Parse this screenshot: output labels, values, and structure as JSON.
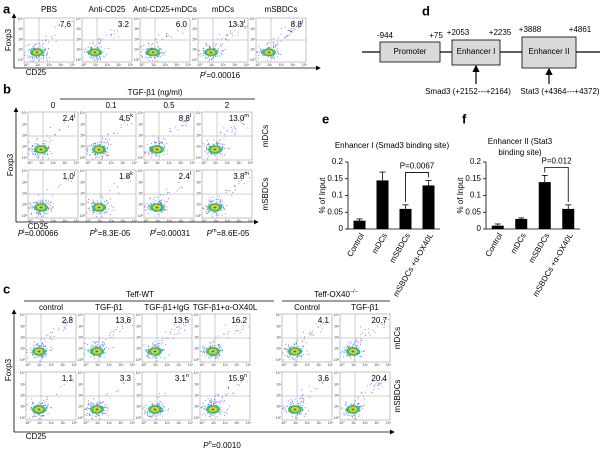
{
  "flow_axis_ticks": [
    "10⁰",
    "10¹",
    "10²",
    "10³",
    "10⁴"
  ],
  "panel_a": {
    "letter": "a",
    "y_label": "Foxp3",
    "x_label": "CD25",
    "plots": [
      {
        "title": "PBS",
        "value": "7.6"
      },
      {
        "title": "Anti-CD25",
        "value": "3.2"
      },
      {
        "title": "Anti-CD25+mDCs",
        "value": "6.0"
      },
      {
        "title": "mDCs",
        "value": "13.3",
        "sup": "i"
      },
      {
        "title": "mSBDCs",
        "value": "8.8",
        "sup": "i"
      }
    ],
    "p_value": {
      "p": "P",
      "sup": "i",
      "rest": "=0.00016"
    }
  },
  "panel_b": {
    "letter": "b",
    "header": "TGF-β1 (ng/ml)",
    "columns": [
      "0",
      "0.1",
      "0.5",
      "2"
    ],
    "y_label": "Foxp3",
    "x_label": "CD25",
    "rows": [
      {
        "label": "mDCs",
        "values": [
          {
            "value": "2.4",
            "sup": "j"
          },
          {
            "value": "4.5",
            "sup": "k"
          },
          {
            "value": "8.8",
            "sup": "l"
          },
          {
            "value": "13.0",
            "sup": "m"
          }
        ]
      },
      {
        "label": "mSBDCs",
        "values": [
          {
            "value": "1.0",
            "sup": "j"
          },
          {
            "value": "1.8",
            "sup": "k"
          },
          {
            "value": "2.4",
            "sup": "l"
          },
          {
            "value": "3.8",
            "sup": "m"
          }
        ]
      }
    ],
    "p_values": [
      {
        "p": "P",
        "sup": "j",
        "rest": "=0.00066"
      },
      {
        "p": "P",
        "sup": "k",
        "rest": "=8.3E-05"
      },
      {
        "p": "P",
        "sup": "l",
        "rest": "=0.00031"
      },
      {
        "p": "P",
        "sup": "m",
        "rest": "=8.6E-05"
      }
    ]
  },
  "panel_c": {
    "letter": "c",
    "y_label": "Foxp3",
    "x_label": "CD25",
    "groups": [
      {
        "label": "Teff-WT"
      },
      {
        "label": "Teff-OX40",
        "sup": "−/−"
      }
    ],
    "columns": [
      "control",
      "TGF-β1",
      "TGF-β1+IgG",
      "TGF-β1+α-OX40L",
      "Control",
      "TGF-β1"
    ],
    "rows": [
      {
        "label": "mDCs",
        "values": [
          {
            "value": "2.8"
          },
          {
            "value": "13.6"
          },
          {
            "value": "13.5"
          },
          {
            "value": "16.2"
          },
          {
            "value": "4.1"
          },
          {
            "value": "20.7"
          }
        ]
      },
      {
        "label": "mSBDCs",
        "values": [
          {
            "value": "1.1"
          },
          {
            "value": "3.3"
          },
          {
            "value": "3.1",
            "sup": "n"
          },
          {
            "value": "15.9",
            "sup": "n"
          },
          {
            "value": "3.6"
          },
          {
            "value": "20.4"
          }
        ]
      }
    ],
    "p_value": {
      "p": "P",
      "sup": "n",
      "rest": "=0.0010"
    }
  },
  "panel_d": {
    "letter": "d",
    "promoter": {
      "label": "Promoter",
      "start": "-944",
      "end": "+75"
    },
    "enhancers": [
      {
        "label": "Enhancer I",
        "start": "+2053",
        "end": "+2235",
        "site": "Smad3 (+2152---+2164)"
      },
      {
        "label": "Enhancer II",
        "start": "+3888",
        "end": "+4861",
        "site": "Stat3 (+4364---+4372)"
      }
    ]
  },
  "chart_data": [
    {
      "type": "bar",
      "panel_label": "e",
      "title": [
        "Enhancer I (Smad3 binding site)"
      ],
      "y_label": "% of Input",
      "categories": [
        "Control",
        "mDCs",
        "mSBDCs",
        "mSBDCs +α-OX40L"
      ],
      "values": [
        0.025,
        0.145,
        0.06,
        0.13
      ],
      "errors": [
        0.005,
        0.025,
        0.012,
        0.015
      ],
      "color": "#000000",
      "ylim": [
        0,
        0.2
      ],
      "yticks": [
        0,
        0.05,
        0.1,
        0.15,
        0.2
      ],
      "annotation": "P=0.0067"
    },
    {
      "type": "bar",
      "panel_label": "f",
      "title": [
        "Enhancer II (Stat3",
        "binding site)"
      ],
      "y_label": "% of Input",
      "categories": [
        "Control",
        "mDCs",
        "mSBDCs",
        "mSBDCs +α-OX40L"
      ],
      "values": [
        0.01,
        0.03,
        0.14,
        0.06
      ],
      "errors": [
        0.005,
        0.003,
        0.02,
        0.012
      ],
      "color": "#000000",
      "ylim": [
        0,
        0.2
      ],
      "yticks": [
        0,
        0.05,
        0.1,
        0.15,
        0.2
      ],
      "annotation": "P=0.012"
    }
  ]
}
